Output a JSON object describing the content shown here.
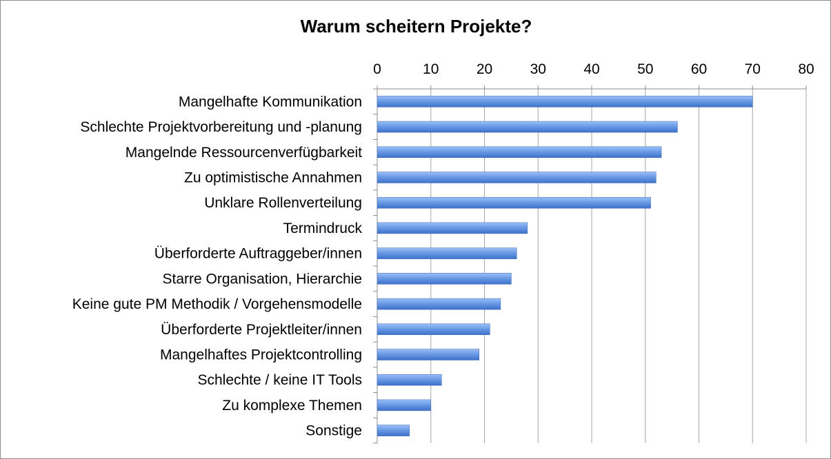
{
  "chart_data": {
    "type": "bar",
    "orientation": "horizontal",
    "title": "Warum scheitern Projekte?",
    "xlabel": "",
    "ylabel": "",
    "xlim": [
      0,
      80
    ],
    "x_ticks": [
      0,
      10,
      20,
      30,
      40,
      50,
      60,
      70,
      80
    ],
    "x_axis_position": "top",
    "grid": "vertical",
    "legend": "none",
    "bar_color": "#5b8de0",
    "categories": [
      "Mangelhafte Kommunikation",
      "Schlechte Projektvorbereitung und -planung",
      "Mangelnde Ressourcenverfügbarkeit",
      "Zu optimistische Annahmen",
      "Unklare Rollenverteilung",
      "Termindruck",
      "Überforderte Auftraggeber/innen",
      "Starre Organisation, Hierarchie",
      "Keine gute PM Methodik / Vorgehensmodelle",
      "Überforderte Projektleiter/innen",
      "Mangelhaftes Projektcontrolling",
      "Schlechte / keine IT Tools",
      "Zu komplexe Themen",
      "Sonstige"
    ],
    "values": [
      70,
      56,
      53,
      52,
      51,
      28,
      26,
      25,
      23,
      21,
      19,
      12,
      10,
      6
    ]
  }
}
